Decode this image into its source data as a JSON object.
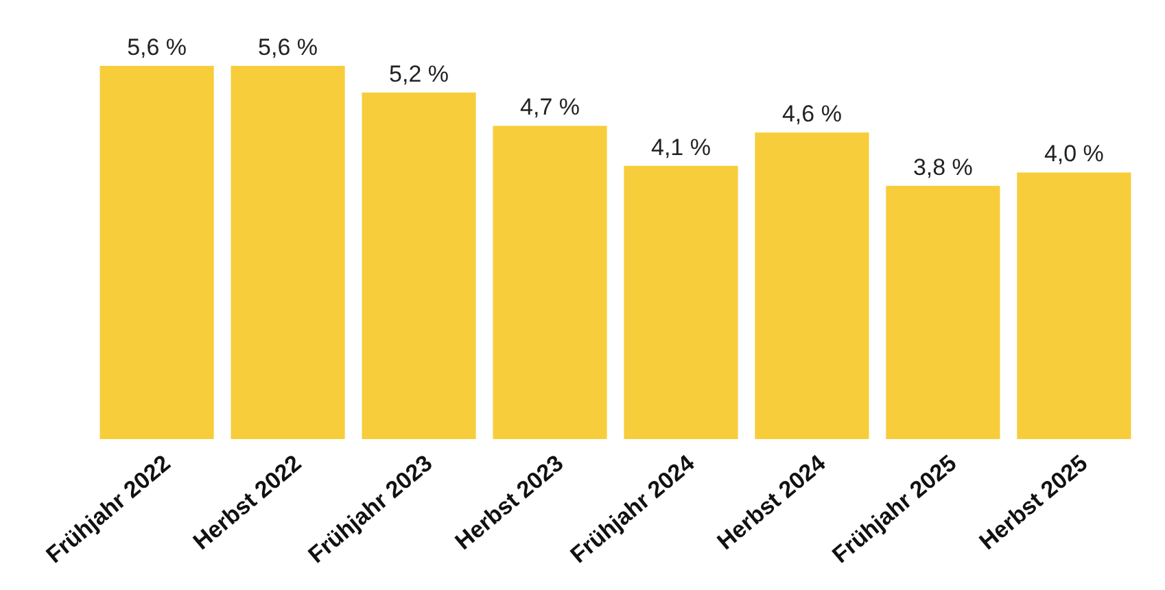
{
  "chart_data": {
    "type": "bar",
    "categories": [
      "Frühjahr 2022",
      "Herbst 2022",
      "Frühjahr 2023",
      "Herbst 2023",
      "Frühjahr 2024",
      "Herbst 2024",
      "Frühjahr 2025",
      "Herbst 2025"
    ],
    "values": [
      5.6,
      5.6,
      5.2,
      4.7,
      4.1,
      4.6,
      3.8,
      4.0
    ],
    "value_labels": [
      "5,6 %",
      "5,6 %",
      "5,2 %",
      "4,7 %",
      "4,1 %",
      "4,6 %",
      "3,8 %",
      "4,0 %"
    ],
    "color": "#f7cd3b"
  }
}
